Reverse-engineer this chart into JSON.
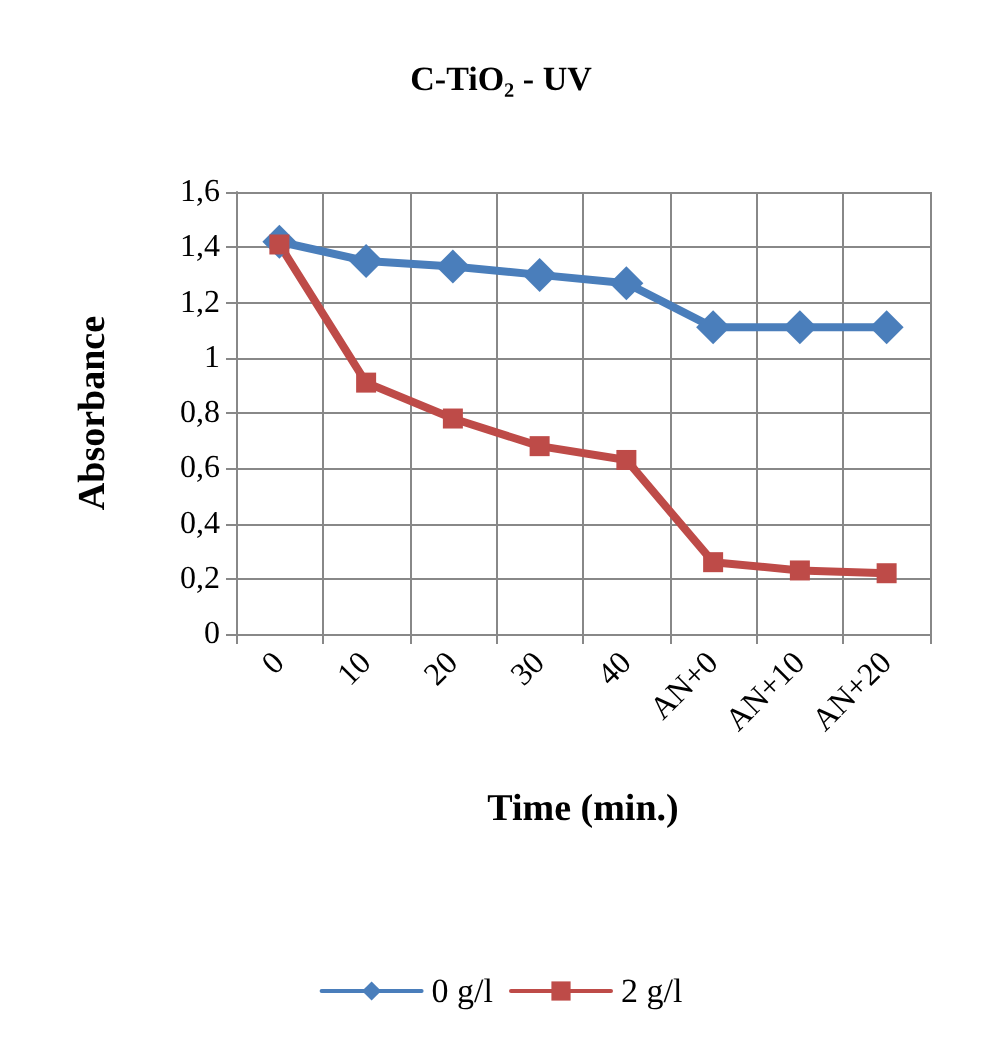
{
  "chart_data": {
    "type": "line",
    "title": "C-TiO₂ - UV",
    "xlabel": "Time (min.)",
    "ylabel": "Absorbance",
    "categories": [
      "0",
      "10",
      "20",
      "30",
      "40",
      "AN+0",
      "AN+10",
      "AN+20"
    ],
    "series": [
      {
        "name": "0 g/l",
        "color": "#4a7ebb",
        "marker": "diamond",
        "values": [
          1.42,
          1.35,
          1.33,
          1.3,
          1.27,
          1.11,
          1.11,
          1.11
        ]
      },
      {
        "name": "2 g/l",
        "color": "#be4b48",
        "marker": "square",
        "values": [
          1.41,
          0.91,
          0.78,
          0.68,
          0.63,
          0.26,
          0.23,
          0.22
        ]
      }
    ],
    "ylim": [
      0,
      1.6
    ],
    "yticks": [
      0,
      {
        "value": 0.2,
        "label": "0,2"
      },
      {
        "value": 0.4,
        "label": "0,4"
      },
      {
        "value": 0.6,
        "label": "0,6"
      },
      {
        "value": 0.8,
        "label": "0,8"
      },
      1,
      {
        "value": 1.2,
        "label": "1,2"
      },
      {
        "value": 1.4,
        "label": "1,4"
      },
      {
        "value": 1.6,
        "label": "1,6"
      }
    ],
    "grid": true,
    "legend": "bottom",
    "line_style": "solid"
  }
}
